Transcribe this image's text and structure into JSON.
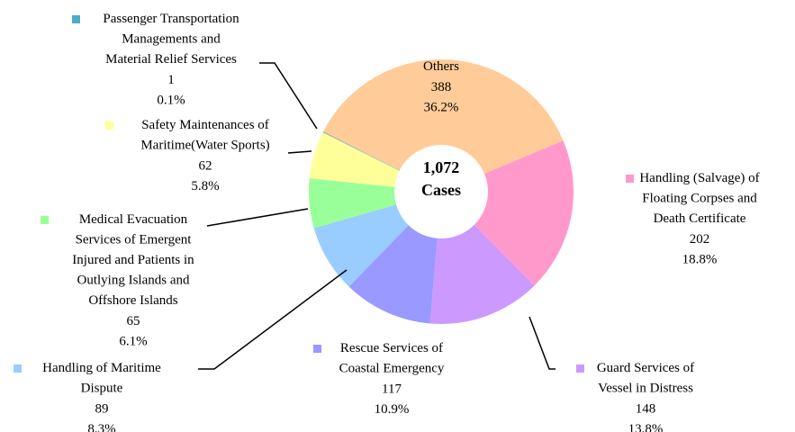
{
  "chart_data": {
    "type": "pie",
    "donut": true,
    "center_text": [
      "1,072",
      "Cases"
    ],
    "categories": [
      "Others",
      "Handling (Salvage) of\nFloating Corpses and\nDeath Certificate",
      "Guard Services of\nVessel in Distress",
      "Rescue Services of\nCoastal Emergency",
      "Handling of Maritime\nDispute",
      "Medical Evacuation\nServices of Emergent\nInjured and Patients in\nOutlying Islands and\nOffshore Islands",
      "Safety Maintenances of\nMaritime(Water Sports)",
      "Passenger Transportation\nManagements and\nMaterial Relief Services"
    ],
    "values": [
      388,
      202,
      148,
      117,
      89,
      65,
      62,
      1
    ],
    "percent_labels": [
      "36.2%",
      "18.8%",
      "13.8%",
      "10.9%",
      "8.3%",
      "6.1%",
      "5.8%",
      "0.1%"
    ],
    "colors": [
      "#ffcc99",
      "#ff99cc",
      "#cc99ff",
      "#9999ff",
      "#99ccff",
      "#99ff99",
      "#ffff99",
      "#4bacc6"
    ]
  }
}
